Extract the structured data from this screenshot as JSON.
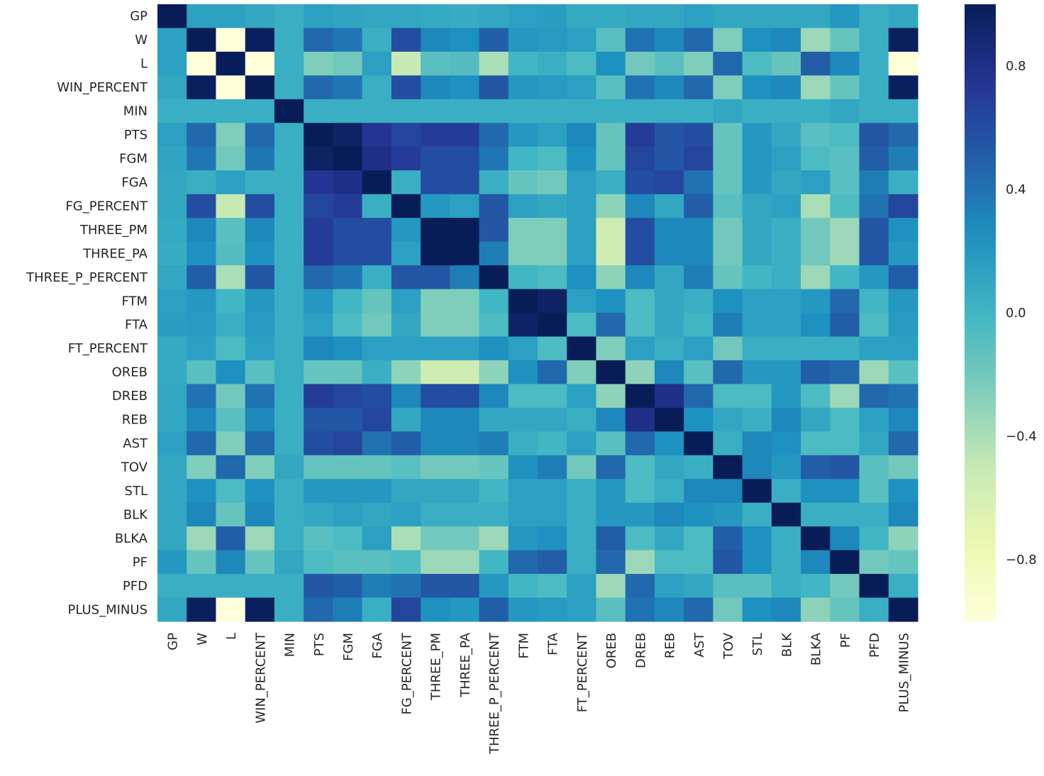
{
  "chart_data": {
    "type": "heatmap",
    "title": "",
    "xlabel": "",
    "ylabel": "",
    "colormap": "YlGnBu",
    "vmin": -1.0,
    "vmax": 1.0,
    "colorbar_ticks": [
      0.8,
      0.4,
      0.0,
      -0.4,
      -0.8
    ],
    "colorbar_tick_labels": [
      "0.8",
      "0.4",
      "0.0",
      "−0.4",
      "−0.8"
    ],
    "labels": [
      "GP",
      "W",
      "L",
      "WIN_PERCENT",
      "MIN",
      "PTS",
      "FGM",
      "FGA",
      "FG_PERCENT",
      "THREE_PM",
      "THREE_PA",
      "THREE_P_PERCENT",
      "FTM",
      "FTA",
      "FT_PERCENT",
      "OREB",
      "DREB",
      "REB",
      "AST",
      "TOV",
      "STL",
      "BLK",
      "BLKA",
      "PF",
      "PFD",
      "PLUS_MINUS"
    ],
    "matrix": [
      [
        1.0,
        0.14,
        0.14,
        0.1,
        0.05,
        0.15,
        0.12,
        0.1,
        0.1,
        0.08,
        0.07,
        0.1,
        0.15,
        0.16,
        0.08,
        0.08,
        0.1,
        0.1,
        0.15,
        0.1,
        0.1,
        0.1,
        0.1,
        0.2,
        0.05,
        0.1
      ],
      [
        0.14,
        1.0,
        -1.0,
        0.98,
        0.05,
        0.45,
        0.38,
        0.05,
        0.6,
        0.3,
        0.25,
        0.5,
        0.2,
        0.18,
        0.15,
        -0.1,
        0.4,
        0.3,
        0.45,
        -0.25,
        0.25,
        0.3,
        -0.35,
        -0.15,
        0.05,
        0.98
      ],
      [
        0.14,
        -1.0,
        1.0,
        -1.0,
        0.05,
        -0.25,
        -0.2,
        0.15,
        -0.5,
        -0.1,
        -0.08,
        -0.4,
        0.0,
        0.05,
        -0.05,
        0.25,
        -0.2,
        -0.1,
        -0.25,
        0.45,
        -0.05,
        -0.15,
        0.5,
        0.3,
        0.05,
        -1.0
      ],
      [
        0.1,
        0.98,
        -1.0,
        1.0,
        0.05,
        0.45,
        0.38,
        0.05,
        0.6,
        0.3,
        0.25,
        0.55,
        0.2,
        0.18,
        0.15,
        -0.1,
        0.4,
        0.3,
        0.45,
        -0.25,
        0.25,
        0.3,
        -0.35,
        -0.15,
        0.05,
        0.98
      ],
      [
        0.05,
        0.05,
        0.05,
        0.05,
        1.0,
        0.05,
        0.05,
        0.05,
        0.05,
        0.05,
        0.05,
        0.05,
        0.05,
        0.05,
        0.05,
        0.05,
        0.05,
        0.05,
        0.05,
        0.1,
        0.05,
        0.05,
        0.05,
        0.1,
        0.05,
        0.05
      ],
      [
        0.15,
        0.45,
        -0.25,
        0.45,
        0.05,
        1.0,
        0.95,
        0.75,
        0.65,
        0.7,
        0.7,
        0.45,
        0.2,
        0.15,
        0.3,
        -0.15,
        0.7,
        0.55,
        0.6,
        -0.15,
        0.2,
        0.1,
        -0.1,
        -0.05,
        0.55,
        0.45
      ],
      [
        0.12,
        0.38,
        -0.2,
        0.38,
        0.05,
        0.95,
        1.0,
        0.8,
        0.7,
        0.6,
        0.6,
        0.38,
        0.0,
        -0.05,
        0.25,
        -0.15,
        0.65,
        0.55,
        0.65,
        -0.15,
        0.2,
        0.15,
        -0.05,
        -0.1,
        0.5,
        0.35
      ],
      [
        0.1,
        0.05,
        0.15,
        0.05,
        0.05,
        0.75,
        0.8,
        1.0,
        0.05,
        0.6,
        0.6,
        0.05,
        -0.15,
        -0.2,
        0.15,
        0.05,
        0.6,
        0.65,
        0.4,
        -0.15,
        0.2,
        0.1,
        0.15,
        -0.1,
        0.35,
        0.05
      ],
      [
        0.1,
        0.6,
        -0.5,
        0.6,
        0.05,
        0.65,
        0.7,
        0.05,
        1.0,
        0.2,
        0.15,
        0.55,
        0.15,
        0.1,
        0.15,
        -0.3,
        0.3,
        0.1,
        0.5,
        -0.1,
        0.1,
        0.15,
        -0.4,
        -0.05,
        0.4,
        0.65
      ],
      [
        0.08,
        0.3,
        -0.1,
        0.3,
        0.05,
        0.7,
        0.6,
        0.6,
        0.2,
        1.0,
        1.0,
        0.55,
        -0.25,
        -0.25,
        0.15,
        -0.55,
        0.6,
        0.3,
        0.3,
        -0.2,
        0.1,
        0.05,
        -0.2,
        -0.35,
        0.55,
        0.25
      ],
      [
        0.07,
        0.25,
        -0.08,
        0.25,
        0.05,
        0.7,
        0.6,
        0.6,
        0.15,
        1.0,
        1.0,
        0.35,
        -0.25,
        -0.25,
        0.15,
        -0.55,
        0.6,
        0.3,
        0.3,
        -0.2,
        0.1,
        0.05,
        -0.2,
        -0.35,
        0.55,
        0.2
      ],
      [
        0.1,
        0.5,
        -0.4,
        0.55,
        0.05,
        0.45,
        0.38,
        0.05,
        0.55,
        0.55,
        0.35,
        1.0,
        0.0,
        -0.05,
        0.25,
        -0.3,
        0.3,
        0.1,
        0.35,
        -0.15,
        0.0,
        0.05,
        -0.35,
        0.0,
        0.2,
        0.5
      ],
      [
        0.15,
        0.2,
        0.0,
        0.2,
        0.05,
        0.2,
        0.0,
        -0.15,
        0.15,
        -0.25,
        -0.25,
        0.0,
        1.0,
        0.95,
        0.15,
        0.25,
        -0.05,
        0.1,
        0.05,
        0.25,
        0.15,
        0.15,
        0.2,
        0.45,
        0.0,
        0.2
      ],
      [
        0.16,
        0.18,
        0.05,
        0.18,
        0.05,
        0.15,
        -0.05,
        -0.2,
        0.1,
        -0.25,
        -0.25,
        -0.05,
        0.95,
        1.0,
        -0.05,
        0.45,
        -0.05,
        0.1,
        0.0,
        0.35,
        0.15,
        0.15,
        0.25,
        0.5,
        -0.05,
        0.18
      ],
      [
        0.08,
        0.15,
        -0.05,
        0.15,
        0.05,
        0.3,
        0.25,
        0.15,
        0.15,
        0.15,
        0.15,
        0.25,
        0.15,
        -0.05,
        1.0,
        -0.25,
        0.15,
        0.05,
        0.15,
        -0.2,
        0.05,
        0.05,
        0.05,
        0.05,
        0.15,
        0.15
      ],
      [
        0.08,
        -0.1,
        0.25,
        -0.1,
        0.05,
        -0.15,
        -0.15,
        0.05,
        -0.3,
        -0.55,
        -0.55,
        -0.3,
        0.25,
        0.45,
        -0.25,
        1.0,
        -0.3,
        0.3,
        -0.1,
        0.45,
        0.2,
        0.2,
        0.5,
        0.45,
        -0.35,
        -0.1
      ],
      [
        0.1,
        0.4,
        -0.2,
        0.4,
        0.05,
        0.7,
        0.65,
        0.6,
        0.3,
        0.6,
        0.6,
        0.3,
        -0.05,
        -0.05,
        0.15,
        -0.3,
        1.0,
        0.8,
        0.45,
        -0.05,
        -0.05,
        0.2,
        -0.05,
        -0.35,
        0.45,
        0.4
      ],
      [
        0.1,
        0.3,
        -0.1,
        0.3,
        0.05,
        0.55,
        0.55,
        0.65,
        0.1,
        0.3,
        0.3,
        0.1,
        0.1,
        0.1,
        0.05,
        0.3,
        0.8,
        1.0,
        0.25,
        0.1,
        0.05,
        0.3,
        0.1,
        -0.05,
        0.15,
        0.3
      ],
      [
        0.15,
        0.45,
        -0.25,
        0.45,
        0.05,
        0.6,
        0.65,
        0.4,
        0.5,
        0.3,
        0.3,
        0.35,
        0.05,
        0.0,
        0.15,
        -0.1,
        0.45,
        0.25,
        1.0,
        0.05,
        0.3,
        0.25,
        -0.05,
        -0.05,
        0.1,
        0.45
      ],
      [
        0.1,
        -0.25,
        0.45,
        -0.25,
        0.1,
        -0.15,
        -0.15,
        -0.15,
        -0.1,
        -0.2,
        -0.2,
        -0.15,
        0.25,
        0.35,
        -0.2,
        0.45,
        -0.05,
        0.1,
        0.05,
        1.0,
        0.3,
        0.2,
        0.5,
        0.55,
        -0.1,
        -0.2
      ],
      [
        0.1,
        0.25,
        -0.05,
        0.25,
        0.05,
        0.2,
        0.2,
        0.2,
        0.1,
        0.1,
        0.1,
        0.0,
        0.15,
        0.15,
        0.05,
        0.2,
        -0.05,
        0.05,
        0.3,
        0.3,
        1.0,
        0.05,
        0.25,
        0.25,
        -0.1,
        0.25
      ],
      [
        0.1,
        0.3,
        -0.15,
        0.3,
        0.05,
        0.1,
        0.15,
        0.1,
        0.15,
        0.05,
        0.05,
        0.05,
        0.15,
        0.15,
        0.05,
        0.2,
        0.2,
        0.3,
        0.25,
        0.2,
        0.05,
        1.0,
        0.05,
        0.05,
        0.05,
        0.3
      ],
      [
        0.1,
        -0.35,
        0.5,
        -0.35,
        0.05,
        -0.1,
        -0.05,
        0.15,
        -0.4,
        -0.2,
        -0.2,
        -0.35,
        0.2,
        0.25,
        0.05,
        0.5,
        -0.05,
        0.1,
        -0.05,
        0.5,
        0.25,
        0.05,
        1.0,
        0.3,
        0.0,
        -0.3
      ],
      [
        0.2,
        -0.15,
        0.3,
        -0.15,
        0.1,
        -0.05,
        -0.1,
        -0.1,
        -0.05,
        -0.35,
        -0.35,
        0.0,
        0.45,
        0.5,
        0.05,
        0.45,
        -0.35,
        -0.05,
        -0.05,
        0.55,
        0.25,
        0.05,
        0.3,
        1.0,
        -0.2,
        -0.15
      ],
      [
        0.05,
        0.05,
        0.05,
        0.05,
        0.05,
        0.55,
        0.5,
        0.35,
        0.4,
        0.55,
        0.55,
        0.2,
        0.0,
        -0.05,
        0.15,
        -0.35,
        0.45,
        0.15,
        0.1,
        -0.1,
        -0.1,
        0.05,
        0.0,
        -0.2,
        1.0,
        0.05
      ],
      [
        0.1,
        0.98,
        -1.0,
        0.98,
        0.05,
        0.45,
        0.35,
        0.05,
        0.65,
        0.25,
        0.2,
        0.5,
        0.2,
        0.18,
        0.15,
        -0.1,
        0.4,
        0.3,
        0.45,
        -0.2,
        0.25,
        0.3,
        -0.3,
        -0.15,
        0.05,
        1.0
      ]
    ]
  }
}
